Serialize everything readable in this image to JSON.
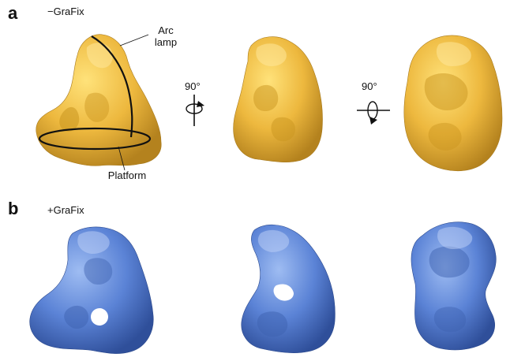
{
  "panels": [
    {
      "letter": "a",
      "condition": "−GraFix",
      "color": "#E8B43A"
    },
    {
      "letter": "b",
      "condition": "+GraFix",
      "color": "#5B83D6"
    }
  ],
  "annotations": {
    "arc_lamp": "Arc\nlamp",
    "platform": "Platform"
  },
  "rotations": [
    {
      "label": "90°",
      "axis": "vertical-axis-icon"
    },
    {
      "label": "90°",
      "axis": "horizontal-axis-icon"
    }
  ]
}
